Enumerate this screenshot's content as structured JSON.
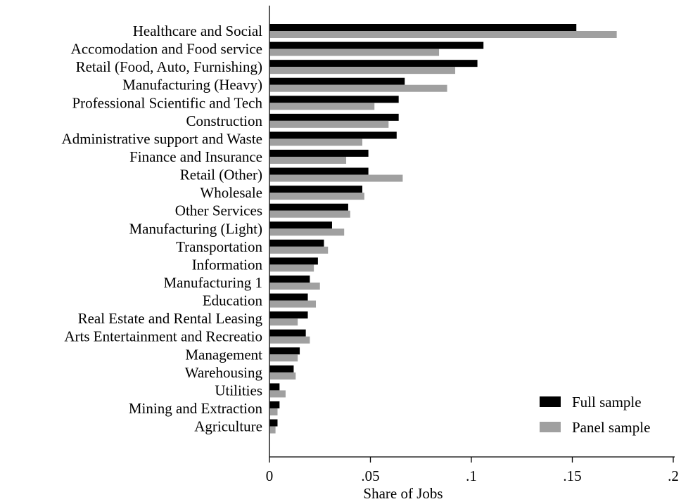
{
  "chart_data": {
    "type": "bar",
    "orientation": "horizontal",
    "title": "",
    "xlabel": "Share of Jobs",
    "ylabel": "",
    "xlim": [
      0,
      0.2
    ],
    "xticks": [
      0,
      0.05,
      0.1,
      0.15,
      0.2
    ],
    "xtick_labels": [
      "0",
      ".05",
      ".1",
      ".15",
      ".2"
    ],
    "grid": false,
    "legend_position": "bottom-right",
    "categories": [
      "Healthcare and Social",
      "Accomodation and Food service",
      "Retail (Food, Auto, Furnishing)",
      "Manufacturing (Heavy)",
      "Professional Scientific and Tech",
      "Construction",
      "Administrative support and Waste",
      "Finance and Insurance",
      "Retail (Other)",
      "Wholesale",
      "Other Services",
      "Manufacturing (Light)",
      "Transportation",
      "Information",
      "Manufacturing 1",
      "Education",
      "Real Estate and Rental Leasing",
      "Arts Entertainment and Recreatio",
      "Management",
      "Warehousing",
      "Utilities",
      "Mining and Extraction",
      "Agriculture"
    ],
    "series": [
      {
        "name": "Full sample",
        "color": "#000000",
        "values": [
          0.152,
          0.106,
          0.103,
          0.067,
          0.064,
          0.064,
          0.063,
          0.049,
          0.049,
          0.046,
          0.039,
          0.031,
          0.027,
          0.024,
          0.02,
          0.019,
          0.019,
          0.018,
          0.015,
          0.012,
          0.005,
          0.005,
          0.004
        ]
      },
      {
        "name": "Panel sample",
        "color": "#a0a0a0",
        "values": [
          0.172,
          0.084,
          0.092,
          0.088,
          0.052,
          0.059,
          0.046,
          0.038,
          0.066,
          0.047,
          0.04,
          0.037,
          0.029,
          0.022,
          0.025,
          0.023,
          0.014,
          0.02,
          0.014,
          0.013,
          0.008,
          0.004,
          0.003
        ]
      }
    ]
  }
}
